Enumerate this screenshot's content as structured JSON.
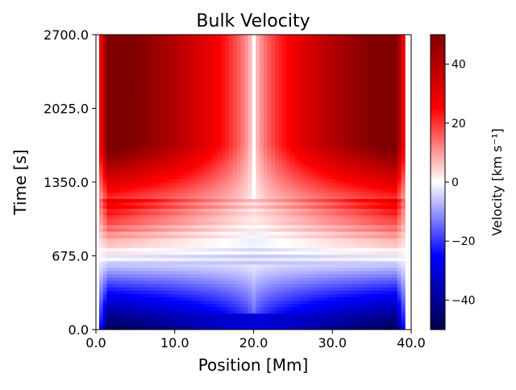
{
  "chart_data": {
    "type": "heatmap",
    "title": "Bulk Velocity",
    "xlabel": "Position [Mm]",
    "ylabel": "Time [s]",
    "xlim": [
      0,
      40
    ],
    "ylim": [
      0,
      2700
    ],
    "x_ticks": [
      {
        "value": 0,
        "label": "0.0"
      },
      {
        "value": 10,
        "label": "10.0"
      },
      {
        "value": 20,
        "label": "20.0"
      },
      {
        "value": 30,
        "label": "30.0"
      },
      {
        "value": 40,
        "label": "40.0"
      }
    ],
    "y_ticks": [
      {
        "value": 0,
        "label": "0.0"
      },
      {
        "value": 675,
        "label": "675.0"
      },
      {
        "value": 1350,
        "label": "1350.0"
      },
      {
        "value": 2025,
        "label": "2025.0"
      },
      {
        "value": 2700,
        "label": "2700.0"
      }
    ],
    "colorbar": {
      "label": "Velocity [km s⁻¹]",
      "colormap": "seismic",
      "vmin": -50,
      "vmax": 50,
      "ticks": [
        {
          "value": 40,
          "label": "40"
        },
        {
          "value": 20,
          "label": "20"
        },
        {
          "value": 0,
          "label": "0"
        },
        {
          "value": -20,
          "label": "−20"
        },
        {
          "value": -40,
          "label": "−40"
        }
      ],
      "colors": {
        "min": "#00004c",
        "mid_low": "#0000ff",
        "zero": "#ffffff",
        "mid_high": "#ff0000",
        "max": "#800000"
      }
    },
    "field": {
      "domain_x": [
        0.4,
        39.2
      ],
      "center_x": 20,
      "early_phase": {
        "t_range": [
          0,
          600
        ],
        "velocity_range": [
          -50,
          -5
        ],
        "description": "negative velocity growing toward zero with time"
      },
      "transition": {
        "t_range": [
          600,
          1200
        ],
        "velocity_range": [
          -5,
          30
        ]
      },
      "late_phase": {
        "t_range": [
          1200,
          2700
        ],
        "velocity_range": [
          0,
          50
        ],
        "description": "positive velocity, near zero at center line x=20"
      }
    }
  }
}
